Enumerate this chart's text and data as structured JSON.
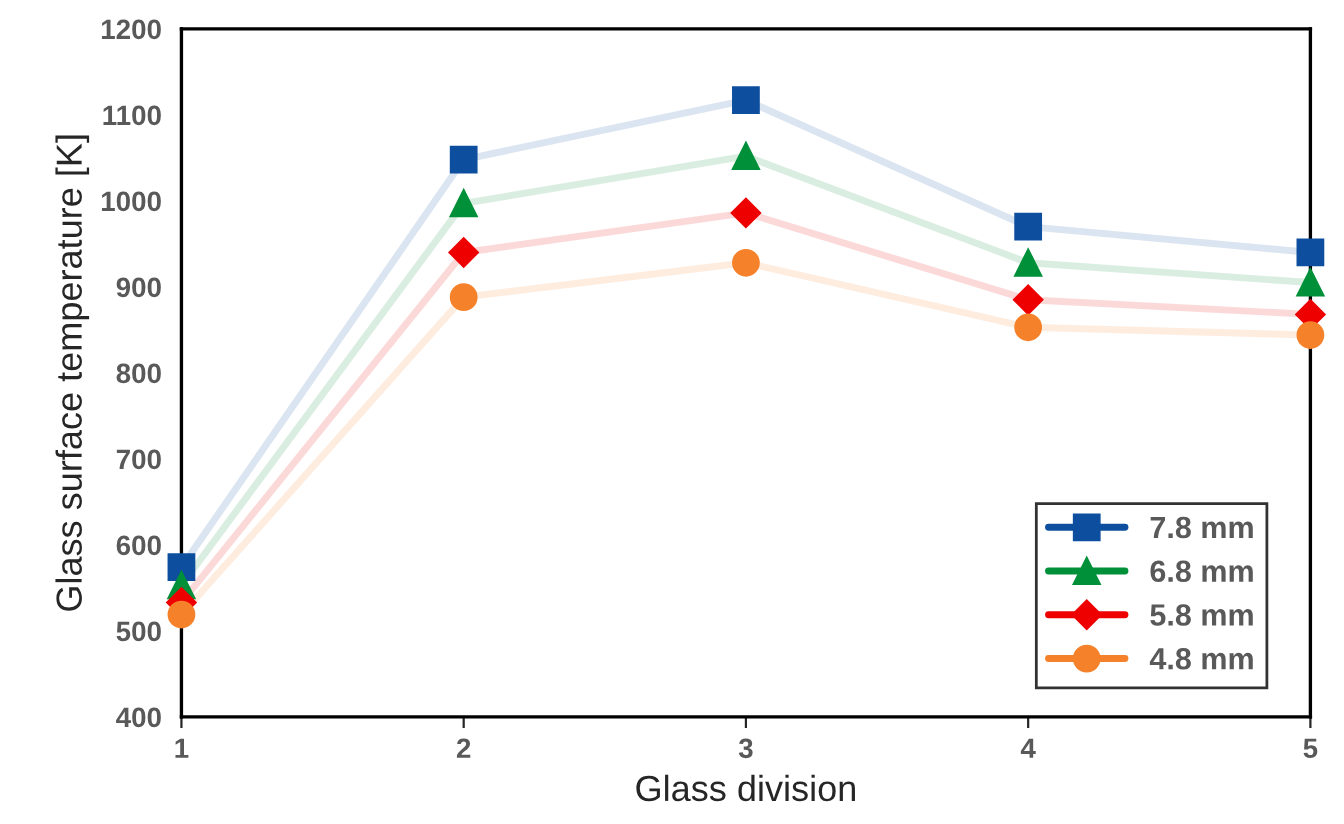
{
  "chart_data": {
    "type": "line",
    "xlabel": "Glass division",
    "ylabel": "Glass surface temperature [K]",
    "x": [
      1,
      2,
      3,
      4,
      5
    ],
    "series": [
      {
        "name": "7.8 mm",
        "color": "#0d4f9e",
        "marker": "square",
        "values": [
          574,
          1048,
          1117,
          970,
          940
        ]
      },
      {
        "name": "6.8 mm",
        "color": "#009039",
        "marker": "triangle",
        "values": [
          553,
          997,
          1052,
          928,
          905
        ]
      },
      {
        "name": "5.8 mm",
        "color": "#ee0000",
        "marker": "diamond",
        "values": [
          533,
          940,
          986,
          885,
          868
        ]
      },
      {
        "name": "4.8 mm",
        "color": "#f5822a",
        "marker": "circle",
        "values": [
          519,
          888,
          928,
          853,
          844
        ]
      }
    ],
    "xlim": [
      1,
      5
    ],
    "xticks": [
      1,
      2,
      3,
      4,
      5
    ],
    "ylim": [
      400,
      1200
    ],
    "yticks": [
      400,
      500,
      600,
      700,
      800,
      900,
      1000,
      1100,
      1200
    ],
    "grid": false,
    "legend": "bottom right",
    "line_style": "solid"
  }
}
